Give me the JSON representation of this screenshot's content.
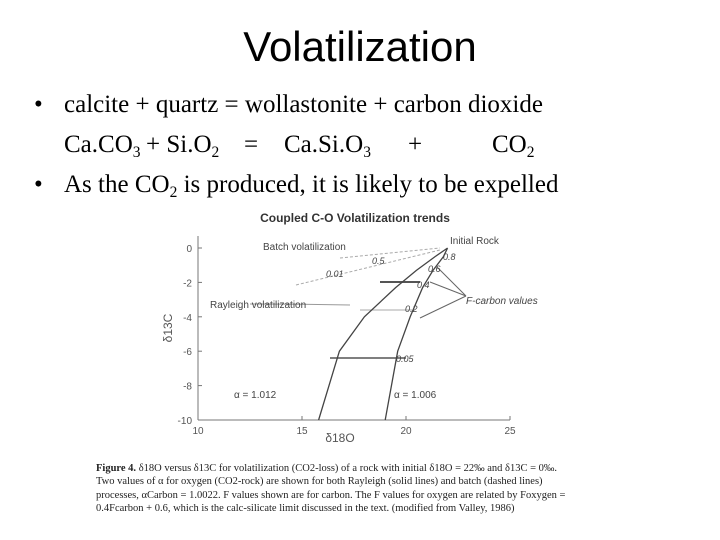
{
  "slide": {
    "title": "Volatilization",
    "bullet1": "calcite + quartz = wollastonite + carbon dioxide",
    "bullet_mark": "•",
    "equation": {
      "lhs1_pre": "Ca.CO",
      "lhs1_sub": "3",
      "plus1": "+ Si.O",
      "lhs2_sub": "2",
      "eq": "=",
      "rhs1_pre": "Ca.Si.O",
      "rhs1_sub": "3",
      "plus2": "+",
      "rhs2_pre": "CO",
      "rhs2_sub": "2"
    },
    "bullet2_pre": "As the CO",
    "bullet2_sub": "2",
    "bullet2_post": " is produced, it is likely to be expelled"
  },
  "figure": {
    "title": "Coupled C-O Volatilization trends",
    "ylabel": "δ13C",
    "xlabel": "δ18O",
    "labels": {
      "batch": "Batch volatilization",
      "rayleigh": "Rayleigh volatilization",
      "initial": "Initial Rock",
      "fcarbon": "F-carbon values",
      "alpha1": "α = 1.012",
      "alpha2": "α = 1.006"
    },
    "f_values": [
      "0.8",
      "0.6",
      "0.4",
      "0.2",
      "0.05",
      "0.5",
      "0.01"
    ],
    "caption_head": "Figure 4.",
    "caption_body": "δ18O versus δ13C for volatilization (CO2-loss) of a rock with initial δ18O = 22‰ and δ13C = 0‰. Two values of α for oxygen (CO2-rock) are shown for both Rayleigh (solid lines) and batch (dashed lines) processes, αCarbon = 1.0022. F values shown are for carbon. The F values for oxygen are related by Foxygen = 0.4Fcarbon + 0.6, which is the calc-silicate limit discussed in the text. (modified from Valley, 1986)"
  },
  "chart_data": {
    "type": "line",
    "title": "Coupled C-O Volatilization trends",
    "xlabel": "δ18O",
    "ylabel": "δ13C",
    "xlim": [
      10,
      25
    ],
    "ylim": [
      -10,
      0
    ],
    "xticks": [
      10,
      15,
      20,
      25
    ],
    "yticks": [
      0,
      -2,
      -4,
      -6,
      -8,
      -10
    ],
    "series": [
      {
        "name": "α = 1.012",
        "style": "solid",
        "x": [
          22,
          21.4,
          20.5,
          19.5,
          18.0,
          16.8,
          15.8
        ],
        "y": [
          0,
          -0.5,
          -1.3,
          -2.3,
          -4.0,
          -6.0,
          -10.0
        ]
      },
      {
        "name": "α = 1.006",
        "style": "solid",
        "x": [
          22,
          21.8,
          21.3,
          20.8,
          20.2,
          19.6,
          19.0
        ],
        "y": [
          0,
          -0.5,
          -1.3,
          -2.3,
          -4.0,
          -6.0,
          -10.0
        ]
      }
    ]
  }
}
